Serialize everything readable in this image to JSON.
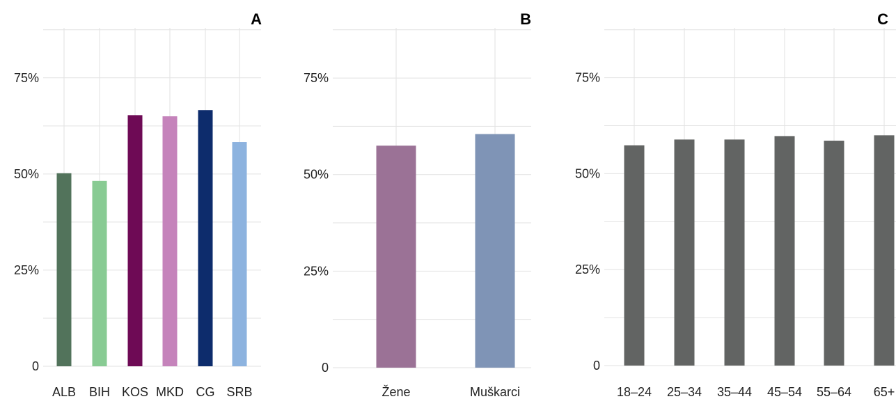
{
  "chart_data": [
    {
      "type": "bar",
      "panel_label": "A",
      "categories": [
        "ALB",
        "BIH",
        "KOS",
        "MKD",
        "CG",
        "SRB"
      ],
      "values": [
        50.2,
        48.2,
        65.3,
        65.0,
        66.6,
        58.3
      ],
      "colors": [
        "#52735b",
        "#88cb93",
        "#6e0a55",
        "#c583bb",
        "#0d2c6c",
        "#8db3df"
      ],
      "ylim": [
        0,
        88
      ],
      "yticks": [
        0,
        25,
        50,
        75
      ],
      "ytick_labels": [
        "0",
        "25%",
        "50%",
        "75%"
      ],
      "grid": true
    },
    {
      "type": "bar",
      "panel_label": "B",
      "categories": [
        "Žene",
        "Muškarci"
      ],
      "values": [
        57.5,
        60.5
      ],
      "colors": [
        "#9b7296",
        "#7f94b6"
      ],
      "ylim": [
        0,
        88
      ],
      "yticks": [
        0,
        25,
        50,
        75
      ],
      "ytick_labels": [
        "0",
        "25%",
        "50%",
        "75%"
      ],
      "grid": true
    },
    {
      "type": "bar",
      "panel_label": "C",
      "categories": [
        "18–24",
        "25–34",
        "35–44",
        "45–54",
        "55–64",
        "65+"
      ],
      "values": [
        57.4,
        58.9,
        58.9,
        59.8,
        58.6,
        60.0
      ],
      "colors": [
        "#626463"
      ],
      "ylim": [
        0,
        88
      ],
      "yticks": [
        0,
        25,
        50,
        75
      ],
      "ytick_labels": [
        "0",
        "25%",
        "50%",
        "75%"
      ],
      "grid": true
    }
  ]
}
